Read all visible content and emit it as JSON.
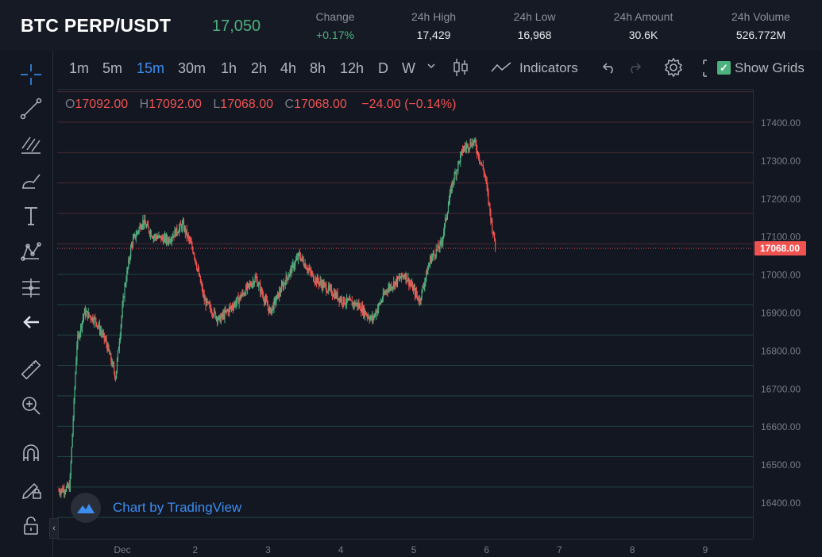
{
  "header": {
    "pair": "BTC PERP/USDT",
    "last_price": "17,050",
    "stats": [
      {
        "label": "Change",
        "value": "+0.17%",
        "positive": true
      },
      {
        "label": "24h High",
        "value": "17,429"
      },
      {
        "label": "24h Low",
        "value": "16,968"
      },
      {
        "label": "24h Amount",
        "value": "30.6K"
      },
      {
        "label": "24h Volume",
        "value": "526.772M"
      }
    ]
  },
  "toolbar": {
    "intervals": [
      "1m",
      "5m",
      "15m",
      "30m",
      "1h",
      "2h",
      "4h",
      "8h",
      "12h",
      "D",
      "W"
    ],
    "active_interval": "15m",
    "indicators_label": "Indicators",
    "show_grids_label": "Show Grids",
    "show_grids_checked": true
  },
  "left_tools": [
    "crosshair-icon",
    "trendline-icon",
    "fib-icon",
    "brush-icon",
    "text-icon",
    "pattern-icon",
    "measure-icon",
    "back-arrow-icon",
    "ruler-icon",
    "zoom-in-icon",
    "magnet-icon",
    "lock-drawing-icon",
    "lock-icon"
  ],
  "legend": {
    "o_label": "O",
    "o": "17092.00",
    "h_label": "H",
    "h": "17092.00",
    "l_label": "L",
    "l": "17068.00",
    "c_label": "C",
    "c": "17068.00",
    "change": "−24.00 (−0.14%)"
  },
  "watermark": {
    "text": "Chart by TradingView"
  },
  "colors": {
    "up": "#4db07f",
    "down": "#ef5350",
    "accent": "#3b8df0",
    "background": "#131722"
  },
  "chart_data": {
    "type": "candlestick",
    "current_price_label": "17068.00",
    "current_price": 17068,
    "y_ticks": [
      "17400.00",
      "17300.00",
      "17200.00",
      "17100.00",
      "17000.00",
      "16900.00",
      "16800.00",
      "16700.00",
      "16600.00",
      "16500.00",
      "16400.00"
    ],
    "y_tick_values": [
      17400,
      17300,
      17200,
      17100,
      17000,
      16900,
      16800,
      16700,
      16600,
      16500,
      16400
    ],
    "x_ticks": [
      "Dec",
      "2",
      "3",
      "4",
      "5",
      "6",
      "7",
      "8",
      "9"
    ],
    "ylim": [
      16360,
      17480
    ],
    "close_path": [
      {
        "day": 0.0,
        "price": 16430
      },
      {
        "day": 0.15,
        "price": 16440
      },
      {
        "day": 0.25,
        "price": 16820
      },
      {
        "day": 0.35,
        "price": 16900
      },
      {
        "day": 0.5,
        "price": 16880
      },
      {
        "day": 0.65,
        "price": 16820
      },
      {
        "day": 0.78,
        "price": 16730
      },
      {
        "day": 0.9,
        "price": 16960
      },
      {
        "day": 1.0,
        "price": 17080
      },
      {
        "day": 1.15,
        "price": 17140
      },
      {
        "day": 1.3,
        "price": 17100
      },
      {
        "day": 1.5,
        "price": 17090
      },
      {
        "day": 1.7,
        "price": 17130
      },
      {
        "day": 1.85,
        "price": 17060
      },
      {
        "day": 2.0,
        "price": 16930
      },
      {
        "day": 2.2,
        "price": 16880
      },
      {
        "day": 2.45,
        "price": 16930
      },
      {
        "day": 2.7,
        "price": 16990
      },
      {
        "day": 2.9,
        "price": 16900
      },
      {
        "day": 3.1,
        "price": 16980
      },
      {
        "day": 3.3,
        "price": 17050
      },
      {
        "day": 3.5,
        "price": 16990
      },
      {
        "day": 3.7,
        "price": 16960
      },
      {
        "day": 3.9,
        "price": 16930
      },
      {
        "day": 4.1,
        "price": 16920
      },
      {
        "day": 4.3,
        "price": 16880
      },
      {
        "day": 4.5,
        "price": 16960
      },
      {
        "day": 4.75,
        "price": 17000
      },
      {
        "day": 4.95,
        "price": 16930
      },
      {
        "day": 5.1,
        "price": 17040
      },
      {
        "day": 5.25,
        "price": 17080
      },
      {
        "day": 5.4,
        "price": 17240
      },
      {
        "day": 5.55,
        "price": 17330
      },
      {
        "day": 5.7,
        "price": 17350
      },
      {
        "day": 5.85,
        "price": 17260
      },
      {
        "day": 5.95,
        "price": 17120
      },
      {
        "day": 6.0,
        "price": 17068
      }
    ]
  }
}
